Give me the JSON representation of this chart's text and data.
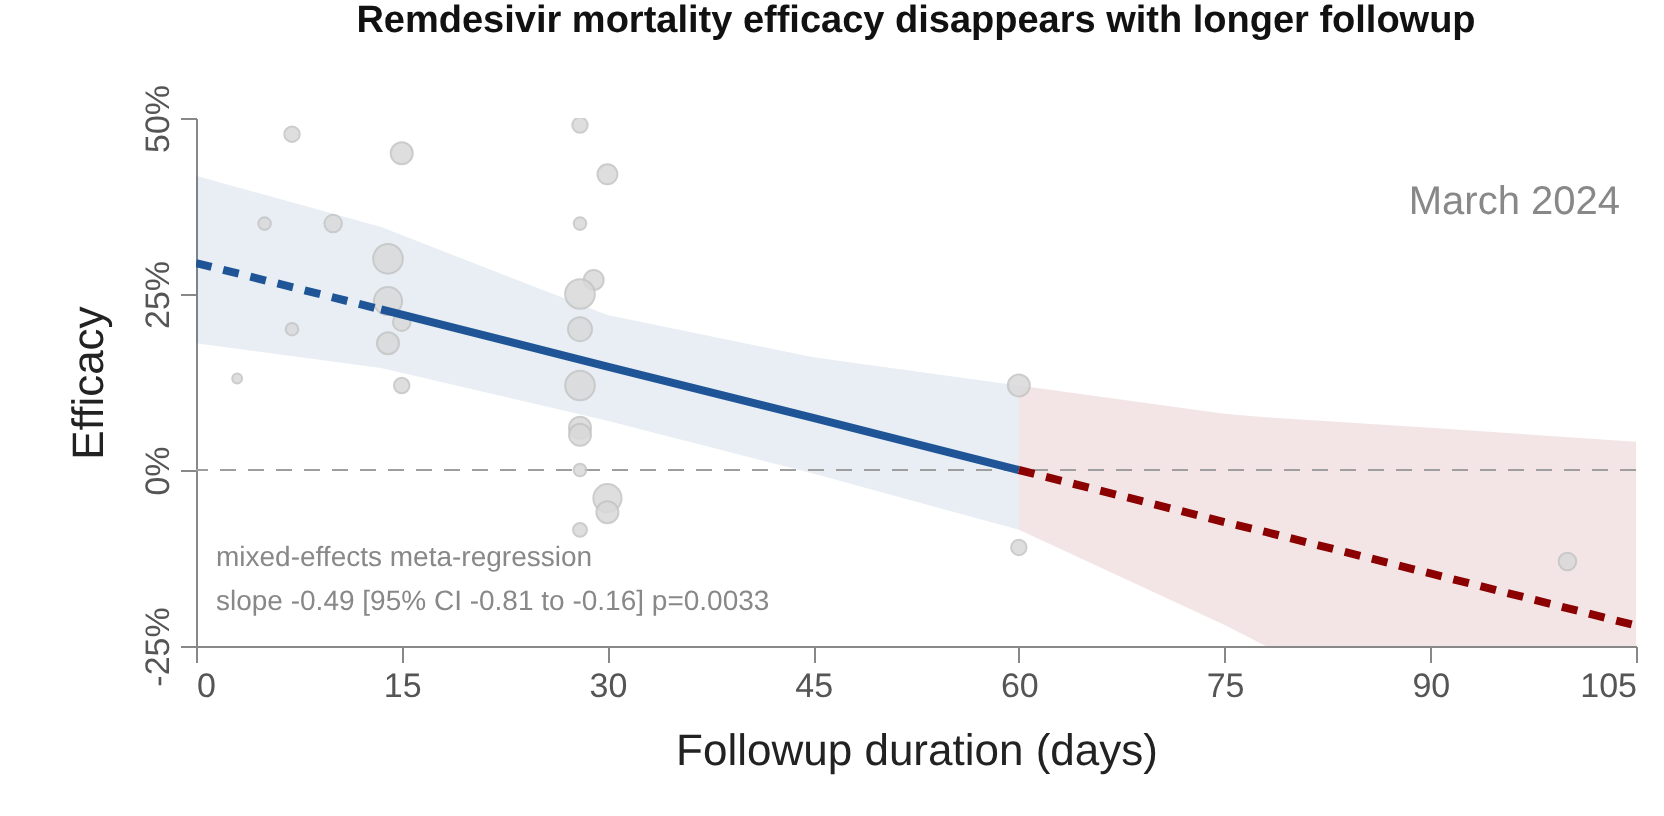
{
  "chart_data": {
    "type": "bubble",
    "title": "Remdesivir mortality efficacy disappears with longer followup",
    "xlabel": "Followup duration (days)",
    "ylabel": "Efficacy",
    "xlim": [
      0,
      105
    ],
    "xticks": [
      0,
      15,
      30,
      45,
      60,
      75,
      90,
      105
    ],
    "ylim": [
      -25,
      50
    ],
    "yticks": [
      {
        "value": -25,
        "label": "-25%"
      },
      {
        "value": 0,
        "label": "0%"
      },
      {
        "value": 25,
        "label": "25%"
      },
      {
        "value": 50,
        "label": "50%"
      }
    ],
    "grid": false,
    "series": [
      {
        "color": "#d9d9d9",
        "x": [
          7,
          15,
          5,
          10,
          14,
          14,
          15,
          14,
          7,
          3,
          15,
          28,
          30,
          28,
          29,
          28,
          28,
          28,
          28,
          28,
          28,
          30,
          30,
          28,
          60,
          60,
          100
        ],
        "values": [
          47.7,
          45,
          35,
          35,
          30,
          24,
          21,
          18,
          20,
          13,
          12,
          49,
          42,
          35,
          27,
          25,
          20,
          12,
          6,
          5,
          0,
          -4,
          -6,
          -8.5,
          12,
          -11,
          -13
        ],
        "sizes": [
          0.27,
          0.55,
          0.18,
          0.35,
          1,
          0.9,
          0.35,
          0.55,
          0.18,
          0.11,
          0.27,
          0.27,
          0.45,
          0.18,
          0.45,
          1,
          0.65,
          1,
          0.55,
          0.55,
          0.18,
          0.9,
          0.55,
          0.22,
          0.55,
          0.27,
          0.35
        ]
      },
      {
        "type": "line",
        "color": "#1f5596",
        "line_style": "dashed",
        "x": [
          0,
          13.5
        ],
        "values": [
          29.4,
          22.8
        ],
        "lower": [
          18,
          14.5
        ],
        "upper": [
          41.8,
          34.5
        ]
      },
      {
        "type": "line",
        "color": "#1f5596",
        "line_style": "solid",
        "x": [
          13.5,
          30,
          45,
          60
        ],
        "values": [
          22.8,
          14.7,
          7.4,
          0
        ],
        "lower": [
          14.5,
          7,
          -0.5,
          -8.5
        ],
        "upper": [
          34.5,
          22,
          16,
          12
        ]
      },
      {
        "type": "line",
        "color": "#8b0000",
        "line_style": "dashed",
        "x": [
          60,
          75,
          78,
          90,
          105
        ],
        "values": [
          0,
          -7.4,
          -8.8,
          -14.7,
          -22.1
        ],
        "lower": [
          -8.5,
          -22,
          -25,
          -25,
          -25
        ],
        "upper": [
          12,
          8,
          7.5,
          6,
          4
        ]
      }
    ],
    "ref_lines": [
      {
        "axis": "y",
        "value": 0,
        "color": "#9e9e9e",
        "line_style": "dashed"
      }
    ],
    "annotations": [
      "mixed-effects meta-regression",
      "slope -0.49 [95% CI -0.81 to -0.16] p=0.0033",
      "March 2024"
    ]
  }
}
